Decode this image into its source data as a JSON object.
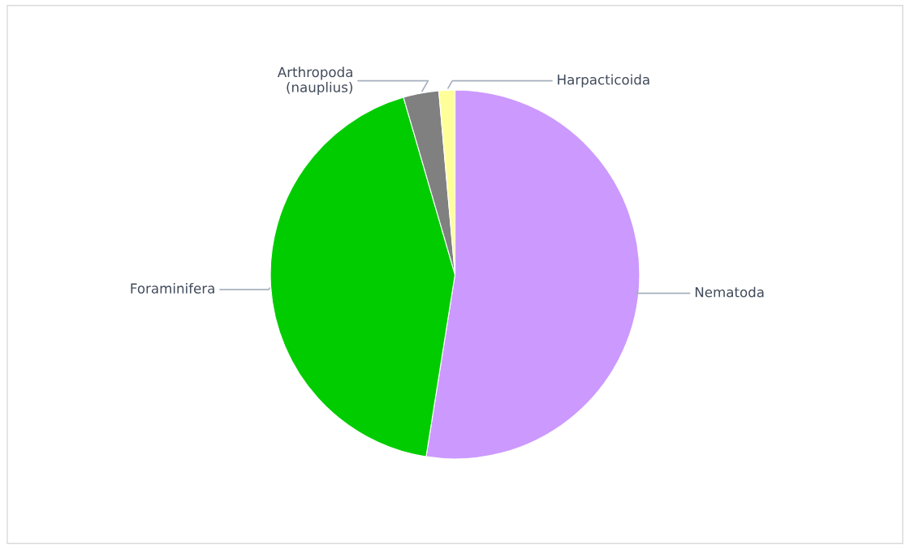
{
  "chart_data": {
    "type": "pie",
    "categories": [
      "Nematoda",
      "Foraminifera",
      "Arthropoda\n(nauplius)",
      "Harpacticoida"
    ],
    "values": [
      52.5,
      43.0,
      3.1,
      1.4
    ],
    "colors": [
      "#cc99ff",
      "#00cc00",
      "#808080",
      "#ffff99"
    ],
    "legend": false
  }
}
